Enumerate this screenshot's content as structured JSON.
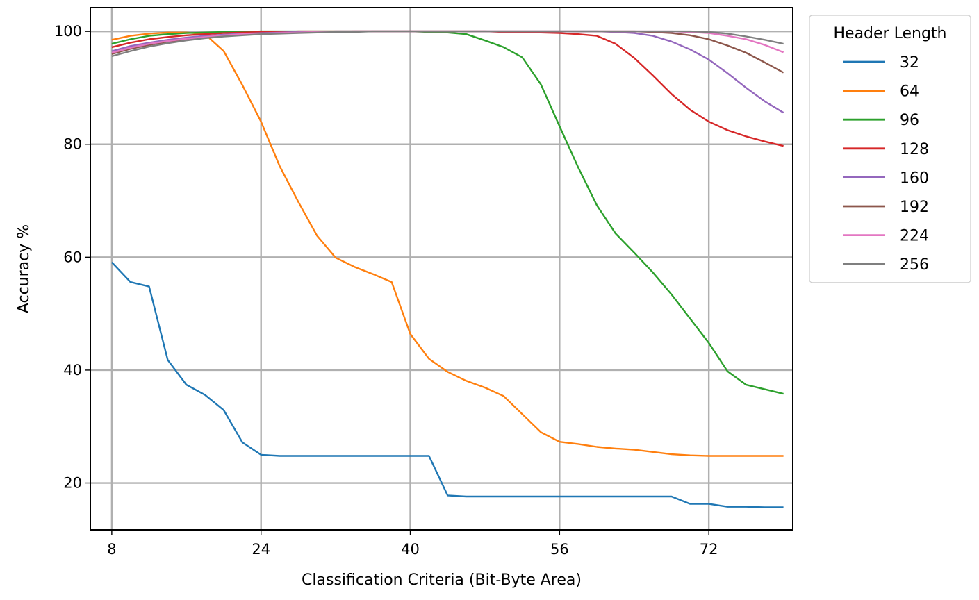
{
  "chart_data": {
    "type": "line",
    "xlabel": "Classification Criteria (Bit-Byte Area)",
    "ylabel": "Accuracy %",
    "xlim": [
      5.7,
      81
    ],
    "ylim": [
      11.7,
      104.2
    ],
    "xticks": [
      8,
      24,
      40,
      56,
      72
    ],
    "yticks": [
      20,
      40,
      60,
      80,
      100
    ],
    "grid": true,
    "legend": {
      "title": "Header Length",
      "placement": "top-right-outside"
    },
    "x": [
      8,
      10,
      12,
      14,
      16,
      18,
      20,
      22,
      24,
      26,
      28,
      30,
      32,
      34,
      36,
      38,
      40,
      42,
      44,
      46,
      48,
      50,
      52,
      54,
      56,
      58,
      60,
      62,
      64,
      66,
      68,
      70,
      72,
      74,
      76,
      78,
      80
    ],
    "series": [
      {
        "name": "32",
        "color": "#1f77b4",
        "values": [
          59.1,
          55.6,
          54.8,
          41.8,
          37.4,
          35.6,
          32.9,
          27.2,
          25.0,
          24.8,
          24.8,
          24.8,
          24.8,
          24.8,
          24.8,
          24.8,
          24.8,
          24.8,
          17.8,
          17.6,
          17.6,
          17.6,
          17.6,
          17.6,
          17.6,
          17.6,
          17.6,
          17.6,
          17.6,
          17.6,
          17.6,
          16.3,
          16.3,
          15.8,
          15.8,
          15.7,
          15.7
        ]
      },
      {
        "name": "64",
        "color": "#ff7f0e",
        "values": [
          98.5,
          99.2,
          99.6,
          99.8,
          99.8,
          99.5,
          96.5,
          90.5,
          84.0,
          76.1,
          69.8,
          63.8,
          59.9,
          58.3,
          57.0,
          55.6,
          46.4,
          42.0,
          39.7,
          38.1,
          36.9,
          35.4,
          32.2,
          29.0,
          27.3,
          26.9,
          26.4,
          26.1,
          25.9,
          25.5,
          25.1,
          24.9,
          24.8,
          24.8,
          24.8,
          24.8,
          24.8
        ]
      },
      {
        "name": "96",
        "color": "#2ca02c",
        "values": [
          97.8,
          98.6,
          99.2,
          99.5,
          99.7,
          99.8,
          99.9,
          99.9,
          100.0,
          100.0,
          100.0,
          100.0,
          100.0,
          100.0,
          100.0,
          100.0,
          100.0,
          99.9,
          99.8,
          99.5,
          98.4,
          97.2,
          95.4,
          90.6,
          83.2,
          75.9,
          69.2,
          64.2,
          60.8,
          57.3,
          53.4,
          49.1,
          44.8,
          39.8,
          37.4,
          36.6,
          35.8
        ]
      },
      {
        "name": "128",
        "color": "#d62728",
        "values": [
          97.2,
          98.0,
          98.6,
          99.0,
          99.3,
          99.5,
          99.7,
          99.8,
          99.9,
          99.9,
          100.0,
          100.0,
          100.0,
          100.0,
          100.0,
          100.0,
          100.0,
          100.0,
          100.0,
          100.0,
          100.0,
          99.9,
          99.9,
          99.8,
          99.7,
          99.5,
          99.2,
          97.8,
          95.3,
          92.2,
          88.9,
          86.1,
          84.0,
          82.5,
          81.4,
          80.5,
          79.7
        ]
      },
      {
        "name": "160",
        "color": "#9467bd",
        "values": [
          96.5,
          97.4,
          98.0,
          98.5,
          98.9,
          99.2,
          99.4,
          99.6,
          99.7,
          99.8,
          99.9,
          99.9,
          100.0,
          100.0,
          100.0,
          100.0,
          100.0,
          100.0,
          100.0,
          100.0,
          100.0,
          100.0,
          100.0,
          100.0,
          100.0,
          100.0,
          100.0,
          99.9,
          99.7,
          99.2,
          98.2,
          96.8,
          95.0,
          92.6,
          90.0,
          87.6,
          85.6
        ]
      },
      {
        "name": "192",
        "color": "#8c564b",
        "values": [
          96.0,
          96.9,
          97.6,
          98.2,
          98.6,
          98.9,
          99.2,
          99.4,
          99.6,
          99.7,
          99.8,
          99.9,
          99.9,
          100.0,
          100.0,
          100.0,
          100.0,
          100.0,
          100.0,
          100.0,
          100.0,
          100.0,
          100.0,
          100.0,
          100.0,
          100.0,
          100.0,
          100.0,
          100.0,
          99.9,
          99.7,
          99.3,
          98.6,
          97.5,
          96.2,
          94.5,
          92.7
        ]
      },
      {
        "name": "224",
        "color": "#e377c2",
        "values": [
          96.2,
          97.1,
          97.8,
          98.3,
          98.7,
          99.0,
          99.3,
          99.5,
          99.6,
          99.7,
          99.8,
          99.9,
          99.9,
          100.0,
          100.0,
          100.0,
          100.0,
          100.0,
          100.0,
          100.0,
          100.0,
          100.0,
          100.0,
          100.0,
          100.0,
          100.0,
          100.0,
          100.0,
          100.0,
          100.0,
          100.0,
          99.9,
          99.7,
          99.2,
          98.6,
          97.6,
          96.3
        ]
      },
      {
        "name": "256",
        "color": "#7f7f7f",
        "values": [
          95.6,
          96.5,
          97.3,
          97.9,
          98.4,
          98.8,
          99.1,
          99.3,
          99.5,
          99.6,
          99.7,
          99.8,
          99.9,
          99.9,
          100.0,
          100.0,
          100.0,
          100.0,
          100.0,
          100.0,
          100.0,
          100.0,
          100.0,
          100.0,
          100.0,
          100.0,
          100.0,
          100.0,
          100.0,
          100.0,
          100.0,
          100.0,
          99.9,
          99.6,
          99.1,
          98.5,
          97.8
        ]
      }
    ]
  }
}
